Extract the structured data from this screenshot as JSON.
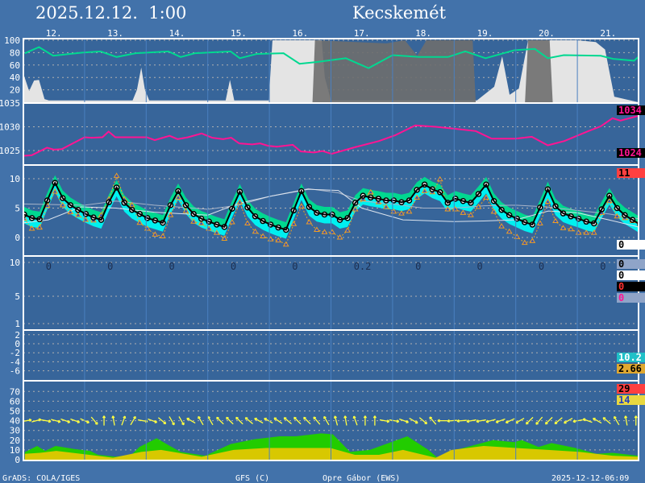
{
  "header": {
    "datetime": "2025.12.12.  1:00",
    "location": "Kecskemét"
  },
  "footer": {
    "left": "GrADS: COLA/IGES",
    "model": "GFS (C)",
    "author": "Opre Gábor (EWS)",
    "created": "2025-12-12-06:09"
  },
  "colors": {
    "background": "#4272aa",
    "plot": "#37659a",
    "humidity": "#00d890",
    "pressure": "#ff1493",
    "temp_mean": "#000000",
    "temp_upper": "#00d890",
    "temp_lower": "#00f0f0",
    "temp_alt": "#f0a020",
    "gust": "#22cc00",
    "wind": "#d8c800",
    "arrows": "#ffff40"
  },
  "chart_data": {
    "type": "line",
    "x_axis": {
      "unit": "day of month",
      "range": [
        12,
        22
      ],
      "tick_labels": [
        "12.",
        "13.",
        "14.",
        "15.",
        "16.",
        "17.",
        "18.",
        "19.",
        "20.",
        "21."
      ]
    },
    "grid": true,
    "panels": {
      "cloud": {
        "ylim": [
          0,
          100
        ],
        "ticks": [
          "100",
          "80",
          "60",
          "40",
          "20"
        ],
        "humidity": [
          [
            12.03,
            79
          ],
          [
            12.26,
            89
          ],
          [
            12.49,
            75
          ],
          [
            12.96,
            80
          ],
          [
            13.26,
            82
          ],
          [
            13.52,
            73
          ],
          [
            13.83,
            79
          ],
          [
            14.36,
            82
          ],
          [
            14.56,
            73
          ],
          [
            14.79,
            79
          ],
          [
            15.37,
            82
          ],
          [
            15.52,
            71
          ],
          [
            15.8,
            78
          ],
          [
            16.23,
            79
          ],
          [
            16.49,
            62
          ],
          [
            16.77,
            65
          ],
          [
            17.24,
            71
          ],
          [
            17.61,
            55
          ],
          [
            18.0,
            76
          ],
          [
            18.43,
            73
          ],
          [
            18.9,
            73
          ],
          [
            19.18,
            82
          ],
          [
            19.51,
            71
          ],
          [
            19.98,
            84
          ],
          [
            20.31,
            86
          ],
          [
            20.52,
            71
          ],
          [
            20.78,
            76
          ],
          [
            21.38,
            75
          ],
          [
            21.58,
            70
          ],
          [
            21.92,
            67
          ],
          [
            21.99,
            73
          ]
        ],
        "low_cloud": [
          [
            12.0,
            48
          ],
          [
            12.1,
            18
          ],
          [
            12.18,
            35
          ],
          [
            12.26,
            36
          ],
          [
            12.35,
            5
          ],
          [
            12.42,
            3
          ],
          [
            13.78,
            3
          ],
          [
            13.85,
            20
          ],
          [
            13.92,
            56
          ],
          [
            13.98,
            20
          ],
          [
            14.05,
            3
          ],
          [
            15.29,
            3
          ],
          [
            15.36,
            36
          ],
          [
            15.43,
            3
          ],
          [
            15.99,
            3
          ],
          [
            16.05,
            100
          ],
          [
            16.85,
            100
          ],
          [
            16.9,
            40
          ],
          [
            17.0,
            3
          ],
          [
            19.37,
            3
          ],
          [
            19.65,
            25
          ],
          [
            19.78,
            74
          ],
          [
            19.9,
            12
          ],
          [
            20.05,
            22
          ],
          [
            20.2,
            100
          ],
          [
            21.0,
            100
          ],
          [
            21.3,
            97
          ],
          [
            21.45,
            85
          ],
          [
            21.6,
            9
          ],
          [
            21.99,
            0
          ]
        ],
        "mid_cloud": [
          [
            16.7,
            0
          ],
          [
            16.74,
            100
          ],
          [
            17.9,
            95
          ],
          [
            18.2,
            100
          ],
          [
            18.4,
            75
          ],
          [
            18.55,
            100
          ],
          [
            19.3,
            100
          ],
          [
            19.35,
            0
          ],
          [
            20.15,
            0
          ],
          [
            20.2,
            100
          ],
          [
            20.55,
            100
          ],
          [
            20.6,
            0
          ]
        ]
      },
      "pressure": {
        "ylim": [
          1022,
          1035
        ],
        "ticks": [
          "1035",
          "1030",
          "1025"
        ],
        "max_label": "1034",
        "min_label": "1024",
        "values": [
          [
            12.02,
            1023.9
          ],
          [
            12.14,
            1024.0
          ],
          [
            12.39,
            1025.6
          ],
          [
            12.5,
            1025.2
          ],
          [
            12.63,
            1025.3
          ],
          [
            13.0,
            1027.8
          ],
          [
            13.11,
            1027.7
          ],
          [
            13.29,
            1027.8
          ],
          [
            13.39,
            1029.0
          ],
          [
            13.5,
            1027.8
          ],
          [
            13.72,
            1027.8
          ],
          [
            14.01,
            1027.8
          ],
          [
            14.14,
            1027.2
          ],
          [
            14.38,
            1028.1
          ],
          [
            14.51,
            1027.4
          ],
          [
            14.68,
            1027.8
          ],
          [
            14.9,
            1028.6
          ],
          [
            15.07,
            1027.7
          ],
          [
            15.25,
            1027.4
          ],
          [
            15.38,
            1027.7
          ],
          [
            15.51,
            1026.5
          ],
          [
            15.72,
            1026.3
          ],
          [
            15.85,
            1026.5
          ],
          [
            15.98,
            1026.0
          ],
          [
            16.12,
            1025.8
          ],
          [
            16.38,
            1026.2
          ],
          [
            16.51,
            1024.8
          ],
          [
            16.73,
            1024.6
          ],
          [
            16.86,
            1024.9
          ],
          [
            17.01,
            1024.3
          ],
          [
            17.39,
            1025.7
          ],
          [
            17.78,
            1027.0
          ],
          [
            18.04,
            1028.2
          ],
          [
            18.37,
            1030.3
          ],
          [
            18.7,
            1030.0
          ],
          [
            19.0,
            1029.6
          ],
          [
            19.35,
            1029.1
          ],
          [
            19.61,
            1027.5
          ],
          [
            20.0,
            1027.5
          ],
          [
            20.26,
            1027.9
          ],
          [
            20.52,
            1026.1
          ],
          [
            20.79,
            1027.0
          ],
          [
            21.18,
            1029.1
          ],
          [
            21.38,
            1030.1
          ],
          [
            21.57,
            1031.8
          ],
          [
            21.7,
            1031.3
          ],
          [
            21.99,
            1032.3
          ]
        ]
      },
      "temperature": {
        "ylim": [
          -3,
          12
        ],
        "ticks": [
          "10",
          "5",
          "0"
        ],
        "max_label": "11",
        "min_label": "0",
        "start_day": 12.02,
        "step_day": 0.125,
        "spread_upper": 1.3,
        "spread_lower": 1.5,
        "mean": [
          3.9,
          3.3,
          3.1,
          6.3,
          9.3,
          6.7,
          5.5,
          4.7,
          4.0,
          3.4,
          3.0,
          6.0,
          8.5,
          5.9,
          4.7,
          4.0,
          3.3,
          2.9,
          2.5,
          5.5,
          7.9,
          5.5,
          4.0,
          3.2,
          2.7,
          2.2,
          1.8,
          4.9,
          7.8,
          5.1,
          3.6,
          2.8,
          2.2,
          1.7,
          1.3,
          4.6,
          7.9,
          5.2,
          4.2,
          3.9,
          3.9,
          3.0,
          3.3,
          5.9,
          7.1,
          6.8,
          6.6,
          6.3,
          6.3,
          6.0,
          6.3,
          8.1,
          9.0,
          8.2,
          7.7,
          5.9,
          6.6,
          6.2,
          5.9,
          7.4,
          9.0,
          6.2,
          4.7,
          3.8,
          3.2,
          2.6,
          2.2,
          5.1,
          8.2,
          5.3,
          4.1,
          3.6,
          3.2,
          2.7,
          2.4,
          4.8,
          7.1,
          5.0,
          3.8,
          3.0,
          2.2
        ],
        "alt_run": [
          3.2,
          1.5,
          1.7,
          5.4,
          7.8,
          5.5,
          4.3,
          3.8,
          3.0,
          2.9,
          3.8,
          6.5,
          10.5,
          6.5,
          5.5,
          2.5,
          1.5,
          0.5,
          0.2,
          3.8,
          6.8,
          4.5,
          2.7,
          2.4,
          1.5,
          0.8,
          -0.2,
          2.6,
          6.0,
          2.4,
          1.0,
          0.2,
          -0.3,
          -0.5,
          -1.2,
          2.3,
          5.3,
          2.6,
          1.3,
          0.9,
          0.9,
          0.0,
          1.2,
          4.8,
          6.5,
          7.7,
          6.0,
          5.2,
          4.4,
          4.1,
          4.4,
          6.8,
          7.9,
          7.7,
          9.9,
          4.8,
          4.8,
          4.2,
          3.8,
          5.2,
          6.8,
          4.4,
          1.9,
          1.0,
          0.1,
          -0.9,
          -0.6,
          2.4,
          6.1,
          2.8,
          1.6,
          1.4,
          0.8,
          0.8,
          0.8,
          4.2,
          6.2,
          3.6,
          3.3,
          2.8,
          2.2
        ],
        "grey_line_1": [
          [
            12.02,
            5.7
          ],
          [
            13.0,
            5.5
          ],
          [
            13.51,
            6.2
          ],
          [
            14.13,
            5.5
          ],
          [
            15.0,
            4.8
          ],
          [
            15.5,
            5.5
          ],
          [
            16.01,
            7.0
          ],
          [
            16.63,
            8.3
          ],
          [
            17.12,
            7.6
          ],
          [
            17.5,
            6.2
          ],
          [
            18.0,
            5.7
          ],
          [
            18.5,
            5.0
          ],
          [
            19.0,
            5.0
          ],
          [
            19.49,
            5.4
          ],
          [
            20.0,
            5.5
          ],
          [
            20.5,
            5.2
          ],
          [
            21.0,
            4.6
          ],
          [
            21.51,
            4.0
          ],
          [
            21.99,
            3.2
          ]
        ],
        "grey_line_2": [
          [
            12.02,
            2.5
          ],
          [
            12.41,
            3.0
          ],
          [
            12.94,
            5.2
          ],
          [
            13.51,
            5.0
          ],
          [
            14.13,
            4.3
          ],
          [
            15.0,
            3.8
          ],
          [
            15.5,
            5.8
          ],
          [
            16.01,
            7.0
          ],
          [
            16.63,
            8.2
          ],
          [
            17.12,
            8.0
          ],
          [
            17.5,
            5.0
          ],
          [
            18.17,
            3.0
          ],
          [
            19.0,
            2.7
          ],
          [
            19.48,
            2.8
          ],
          [
            20.0,
            3.0
          ],
          [
            20.53,
            4.5
          ],
          [
            21.0,
            4.2
          ],
          [
            21.51,
            3.0
          ],
          [
            21.99,
            1.8
          ]
        ]
      },
      "precipitation": {
        "ticks": [
          "10",
          "5",
          "1"
        ],
        "daily_totals": [
          "0",
          "0",
          "0",
          "0",
          "0",
          "0.2",
          "0",
          "0",
          "0",
          "0"
        ],
        "right_labels": [
          "0",
          "0",
          "0",
          "0"
        ]
      },
      "panel5": {
        "ylim": [
          -7,
          3
        ],
        "ticks": [
          "2",
          "0",
          "-2",
          "-4",
          "-6"
        ],
        "right_labels": [
          "10.2",
          "2.66"
        ]
      },
      "wind": {
        "ylim": [
          0,
          80
        ],
        "ticks": [
          "70",
          "60",
          "50",
          "40",
          "30",
          "20",
          "10",
          "0"
        ],
        "max_label": "29",
        "mean_label": "14",
        "gust": [
          [
            12.03,
            7.7
          ],
          [
            12.23,
            14
          ],
          [
            12.36,
            9
          ],
          [
            12.53,
            14
          ],
          [
            12.83,
            11
          ],
          [
            13.09,
            9
          ],
          [
            13.22,
            5
          ],
          [
            13.5,
            3
          ],
          [
            13.76,
            5
          ],
          [
            13.89,
            13
          ],
          [
            14.17,
            22
          ],
          [
            14.36,
            15
          ],
          [
            14.56,
            8
          ],
          [
            14.96,
            4
          ],
          [
            15.37,
            16
          ],
          [
            15.76,
            21
          ],
          [
            16.17,
            24
          ],
          [
            16.43,
            24
          ],
          [
            16.84,
            27
          ],
          [
            17.03,
            26
          ],
          [
            17.31,
            8
          ],
          [
            17.63,
            10
          ],
          [
            18.24,
            24
          ],
          [
            18.58,
            10
          ],
          [
            18.73,
            2
          ],
          [
            19.03,
            10
          ],
          [
            19.63,
            20
          ],
          [
            19.97,
            18
          ],
          [
            20.1,
            20
          ],
          [
            20.37,
            13
          ],
          [
            20.58,
            17
          ],
          [
            20.97,
            12
          ],
          [
            21.31,
            6
          ],
          [
            21.57,
            7
          ],
          [
            21.98,
            4
          ]
        ],
        "mean": [
          [
            12.03,
            6
          ],
          [
            12.28,
            7
          ],
          [
            12.54,
            9
          ],
          [
            12.94,
            6
          ],
          [
            13.46,
            2
          ],
          [
            13.92,
            8
          ],
          [
            14.24,
            10
          ],
          [
            14.9,
            3
          ],
          [
            15.42,
            10
          ],
          [
            15.95,
            12
          ],
          [
            16.47,
            12
          ],
          [
            16.99,
            12
          ],
          [
            17.39,
            5
          ],
          [
            17.78,
            5
          ],
          [
            18.17,
            10
          ],
          [
            18.7,
            2
          ],
          [
            18.96,
            10
          ],
          [
            19.48,
            14
          ],
          [
            20.0,
            12
          ],
          [
            20.52,
            10
          ],
          [
            21.04,
            8
          ],
          [
            21.57,
            4
          ],
          [
            21.98,
            3
          ]
        ],
        "arrows": {
          "level": 40,
          "start_day": 12.06,
          "step_day": 0.157,
          "directions": [
            80,
            75,
            100,
            105,
            110,
            110,
            115,
            140,
            0,
            350,
            20,
            30,
            100,
            110,
            130,
            150,
            150,
            300,
            330,
            330,
            315,
            315,
            315,
            310,
            300,
            300,
            305,
            310,
            315,
            315,
            320,
            330,
            345,
            350,
            340,
            0,
            0,
            100,
            100,
            110,
            120,
            130,
            320,
            270,
            265,
            265,
            260,
            260,
            255,
            250,
            245,
            240,
            225,
            220,
            225,
            230,
            240,
            260,
            290,
            300,
            310,
            330,
            350,
            0
          ]
        }
      }
    }
  }
}
